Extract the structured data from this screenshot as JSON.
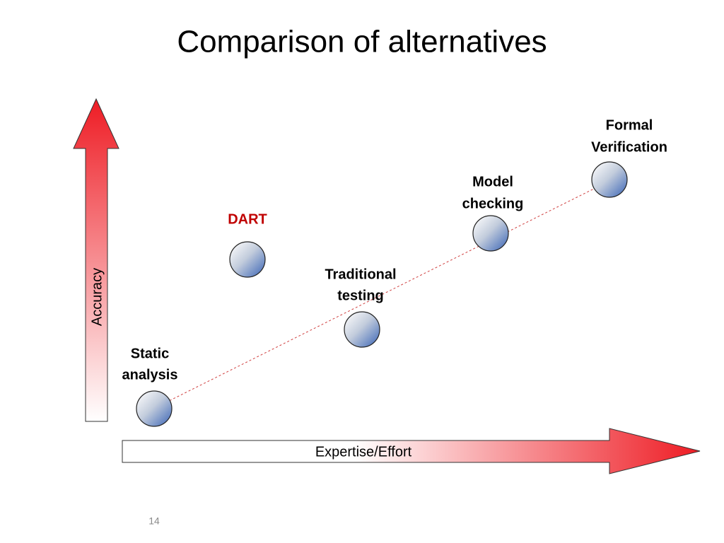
{
  "title": "Comparison of alternatives",
  "y_axis": {
    "label": "Accuracy"
  },
  "x_axis": {
    "label": "Expertise/Effort"
  },
  "nodes": [
    {
      "label_lines": [
        "Static",
        "analysis"
      ]
    },
    {
      "label_lines": [
        "DART"
      ]
    },
    {
      "label_lines": [
        "Traditional",
        "testing"
      ]
    },
    {
      "label_lines": [
        "Model",
        "checking"
      ]
    },
    {
      "label_lines": [
        "Formal",
        "Verification"
      ]
    }
  ],
  "page_number": "14"
}
